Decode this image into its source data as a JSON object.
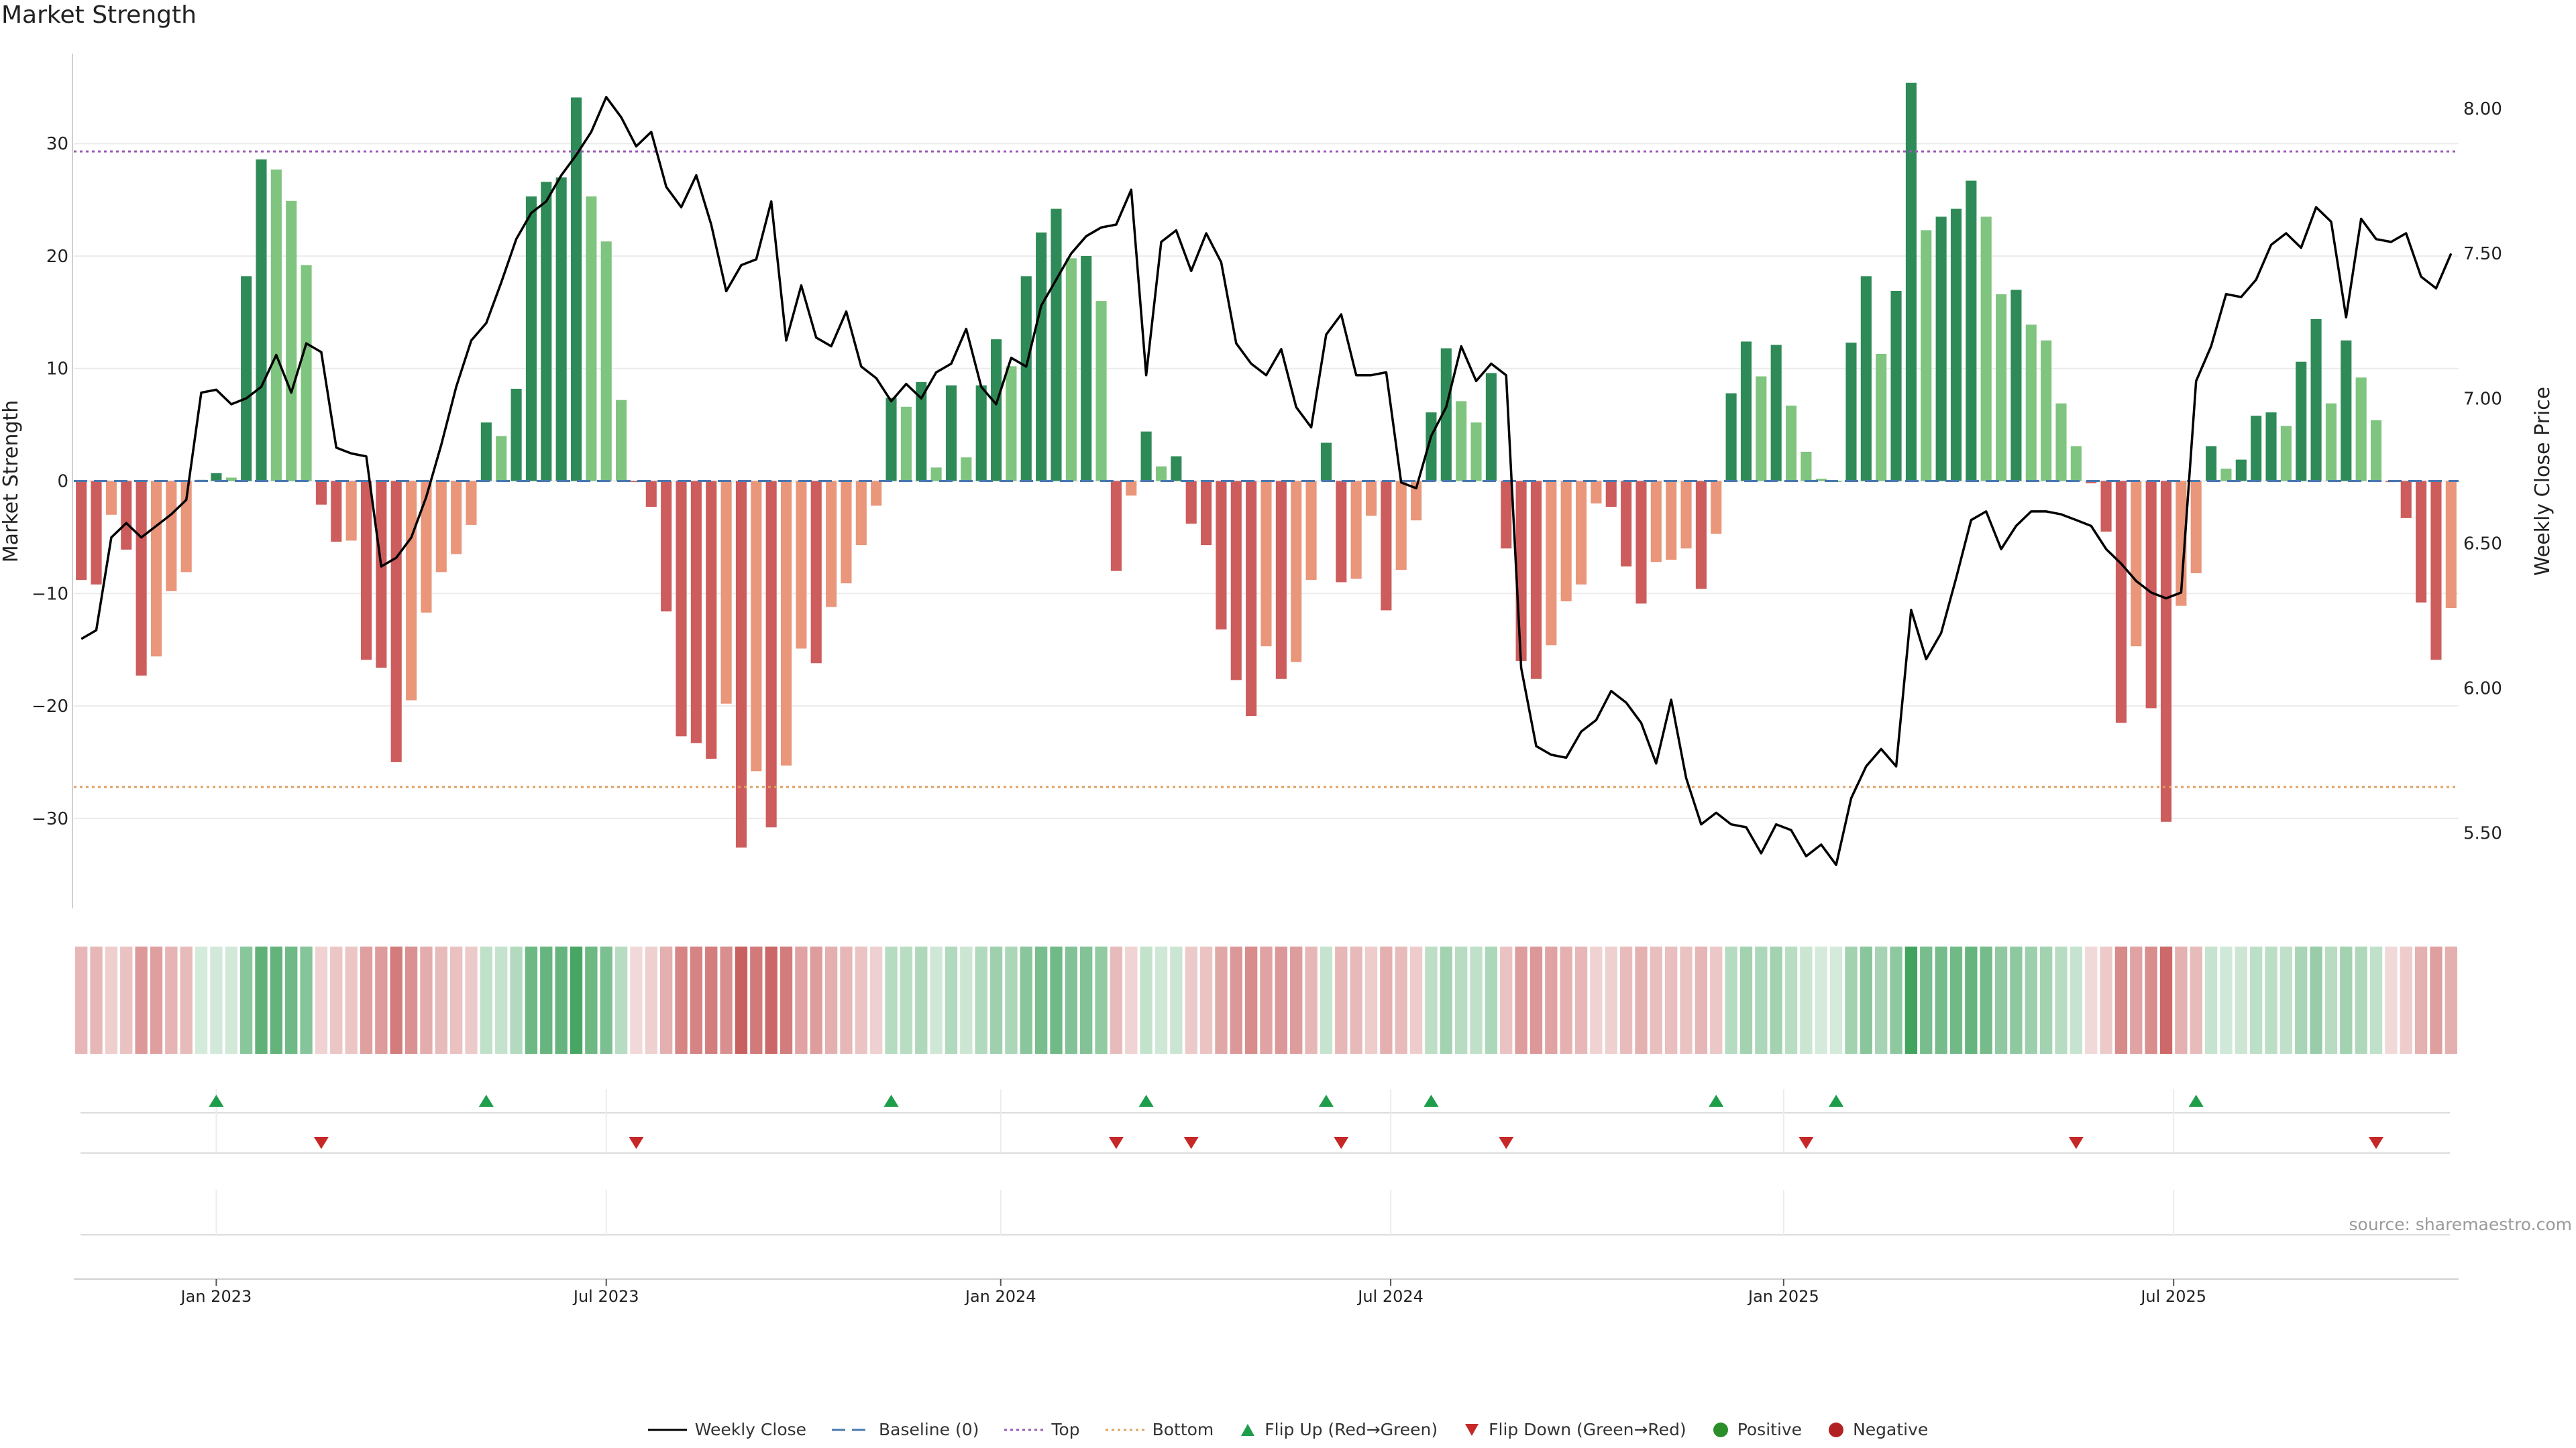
{
  "title": "Market Strength",
  "source": "source: sharemaestro.com",
  "colors": {
    "pos_strong": "#2e8b57",
    "pos_light": "#7fc47f",
    "neg_strong": "#cd5c5c",
    "neg_light": "#e9967a",
    "price": "#000000",
    "top": "#9b59b6",
    "bottom": "#e0a060",
    "baseline": "#4a78b0",
    "flip_up": "#1e9e4a",
    "flip_down": "#c62828"
  },
  "chart_data": {
    "type": "bar",
    "title": "Market Strength",
    "ylabel": "Market Strength",
    "y2label": "Weekly Close Price",
    "ylim": [
      -38,
      38
    ],
    "y2lim": [
      5.24,
      8.19
    ],
    "yticks": [
      -30,
      -20,
      -10,
      0,
      10,
      20,
      30
    ],
    "y2ticks": [
      5.5,
      6.0,
      6.5,
      7.0,
      7.5,
      8.0
    ],
    "y2tick_labels": [
      "5.50",
      "6.00",
      "6.50",
      "7.00",
      "7.50",
      "8.00"
    ],
    "top_line": 29.3,
    "bottom_line": -27.2,
    "baseline": 0,
    "start_date": "2022-10-23",
    "x_labels": [
      {
        "label": "Jan 2023",
        "week": 9.5
      },
      {
        "label": "Jul 2023",
        "week": 35.5
      },
      {
        "label": "Jan 2024",
        "week": 61.8
      },
      {
        "label": "Jul 2024",
        "week": 87.8
      },
      {
        "label": "Jan 2025",
        "week": 114
      },
      {
        "label": "Jul 2025",
        "week": 140
      }
    ],
    "strength": [
      -8.8,
      -9.2,
      -3,
      -6.1,
      -17.3,
      -15.6,
      -9.8,
      -8.1,
      0.1,
      0.7,
      0.3,
      18.2,
      28.6,
      27.7,
      24.9,
      19.2,
      -2.1,
      -5.4,
      -5.3,
      -15.9,
      -16.6,
      -25,
      -19.5,
      -11.7,
      -8.1,
      -6.5,
      -3.9,
      5.2,
      4,
      8.2,
      25.3,
      26.6,
      27,
      34.1,
      25.3,
      21.3,
      7.2,
      -0.1,
      -2.3,
      -11.6,
      -22.7,
      -23.3,
      -24.7,
      -19.8,
      -32.6,
      -25.8,
      -30.8,
      -25.3,
      -14.9,
      -16.2,
      -11.2,
      -9.1,
      -5.7,
      -2.2,
      7.4,
      6.6,
      8.8,
      1.2,
      8.5,
      2.1,
      8.5,
      12.6,
      10.2,
      18.2,
      22.1,
      24.2,
      19.8,
      20,
      16,
      -8,
      -1.3,
      4.4,
      1.3,
      2.2,
      -3.8,
      -5.7,
      -13.2,
      -17.7,
      -20.9,
      -14.7,
      -17.6,
      -16.1,
      -8.8,
      3.4,
      -9,
      -8.7,
      -3.1,
      -11.5,
      -7.9,
      -3.5,
      6.1,
      11.8,
      7.1,
      5.2,
      9.6,
      -6,
      -16,
      -17.6,
      -14.6,
      -10.7,
      -9.2,
      -2,
      -2.3,
      -7.6,
      -10.9,
      -7.2,
      -7,
      -6,
      -9.6,
      -4.7,
      7.8,
      12.4,
      9.3,
      12.1,
      6.7,
      2.6,
      0.2,
      0,
      12.3,
      18.2,
      11.3,
      16.9,
      35.4,
      22.3,
      23.5,
      24.2,
      26.7,
      23.5,
      16.6,
      17,
      13.9,
      12.5,
      6.9,
      3.1,
      -0.2,
      -4.5,
      -21.5,
      -14.7,
      -20.2,
      -30.3,
      -11.1,
      -8.2,
      3.1,
      1.1,
      1.9,
      5.8,
      6.1,
      4.9,
      10.6,
      14.4,
      6.9,
      12.5,
      9.2,
      5.4,
      -0.1,
      -3.3,
      -10.8,
      -15.9,
      -11.3
    ],
    "price": [
      6.17,
      6.2,
      6.52,
      6.57,
      6.52,
      6.56,
      6.6,
      6.65,
      7.02,
      7.03,
      6.98,
      7.0,
      7.04,
      7.15,
      7.02,
      7.19,
      7.16,
      6.83,
      6.81,
      6.8,
      6.42,
      6.45,
      6.52,
      6.66,
      6.84,
      7.04,
      7.2,
      7.26,
      7.4,
      7.55,
      7.64,
      7.68,
      7.77,
      7.84,
      7.92,
      8.04,
      7.97,
      7.87,
      7.92,
      7.73,
      7.66,
      7.77,
      7.6,
      7.37,
      7.46,
      7.48,
      7.68,
      7.2,
      7.39,
      7.21,
      7.18,
      7.3,
      7.11,
      7.07,
      6.99,
      7.05,
      7.0,
      7.09,
      7.12,
      7.24,
      7.04,
      6.98,
      7.14,
      7.11,
      7.32,
      7.41,
      7.5,
      7.56,
      7.59,
      7.6,
      7.72,
      7.08,
      7.54,
      7.58,
      7.44,
      7.57,
      7.47,
      7.19,
      7.12,
      7.08,
      7.17,
      6.97,
      6.9,
      7.22,
      7.29,
      7.08,
      7.08,
      7.09,
      6.71,
      6.69,
      6.87,
      6.97,
      7.18,
      7.06,
      7.12,
      7.08,
      6.07,
      5.8,
      5.77,
      5.76,
      5.85,
      5.89,
      5.99,
      5.95,
      5.88,
      5.74,
      5.96,
      5.69,
      5.53,
      5.57,
      5.53,
      5.52,
      5.43,
      5.53,
      5.51,
      5.42,
      5.46,
      5.39,
      5.62,
      5.73,
      5.79,
      5.73,
      6.27,
      6.1,
      6.19,
      6.38,
      6.58,
      6.61,
      6.48,
      6.56,
      6.61,
      6.61,
      6.6,
      6.58,
      6.56,
      6.48,
      6.43,
      6.37,
      6.33,
      6.31,
      6.33,
      7.06,
      7.18,
      7.36,
      7.35,
      7.41,
      7.53,
      7.57,
      7.52,
      7.66,
      7.61,
      7.28,
      7.62,
      7.55,
      7.54,
      7.57,
      7.42,
      7.38,
      7.5
    ],
    "flip_up_weeks": [
      9,
      27,
      54,
      71,
      83,
      90,
      109,
      117,
      141
    ],
    "flip_down_weeks": [
      16,
      37,
      69,
      74,
      84,
      95,
      115,
      133,
      153
    ],
    "flip_rows": [
      {
        "name": "flip-up-row"
      },
      {
        "name": "flip-down-row"
      },
      {
        "name": "empty-row"
      }
    ]
  },
  "legend": [
    {
      "key": "weekly-close",
      "label": "Weekly Close",
      "symbol": "line",
      "color": "#000000"
    },
    {
      "key": "baseline",
      "label": "Baseline (0)",
      "symbol": "dash",
      "color": "#4a78b0"
    },
    {
      "key": "top",
      "label": "Top",
      "symbol": "dot",
      "color": "#9b59b6"
    },
    {
      "key": "bottom",
      "label": "Bottom",
      "symbol": "dot",
      "color": "#e0a060"
    },
    {
      "key": "flip-up",
      "label": "Flip Up (Red→Green)",
      "symbol": "tri-up",
      "color": "#1e9e4a"
    },
    {
      "key": "flip-down",
      "label": "Flip Down (Green→Red)",
      "symbol": "tri-down",
      "color": "#c62828"
    },
    {
      "key": "positive",
      "label": "Positive",
      "symbol": "circle",
      "color": "#2a8f2a"
    },
    {
      "key": "negative",
      "label": "Negative",
      "symbol": "circle",
      "color": "#b22222"
    }
  ]
}
